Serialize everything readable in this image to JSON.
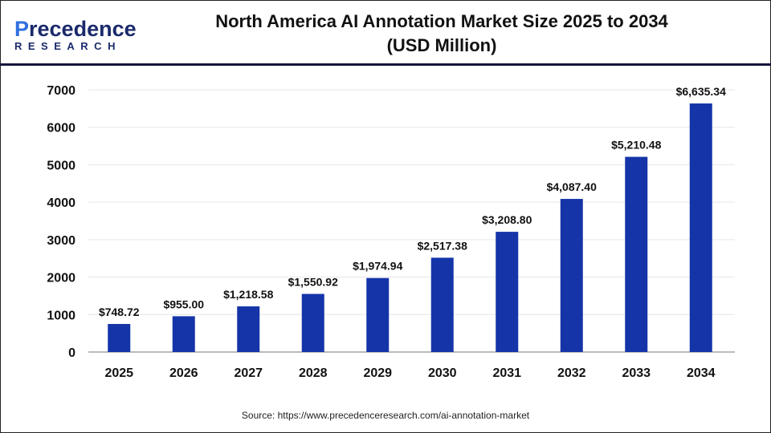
{
  "logo": {
    "main": "Precedence",
    "sub": "RESEARCH"
  },
  "chart_data": {
    "type": "bar",
    "title": "North America AI Annotation Market Size 2025 to 2034",
    "subtitle": "(USD Million)",
    "categories": [
      "2025",
      "2026",
      "2027",
      "2028",
      "2029",
      "2030",
      "2031",
      "2032",
      "2033",
      "2034"
    ],
    "values": [
      748.72,
      955.0,
      1218.58,
      1550.92,
      1974.94,
      2517.38,
      3208.8,
      4087.4,
      5210.48,
      6635.34
    ],
    "data_labels": [
      "$748.72",
      "$955.00",
      "$1,218.58",
      "$1,550.92",
      "$1,974.94",
      "$2,517.38",
      "$3,208.80",
      "$4,087.40",
      "$5,210.48",
      "$6,635.34"
    ],
    "yticks": [
      "0",
      "1000",
      "2000",
      "3000",
      "4000",
      "5000",
      "6000",
      "7000"
    ],
    "ylim": [
      0,
      7000
    ],
    "grid": true,
    "bar_color": "#1434a8"
  },
  "source": "Source: https://www.precedenceresearch.com/ai-annotation-market"
}
